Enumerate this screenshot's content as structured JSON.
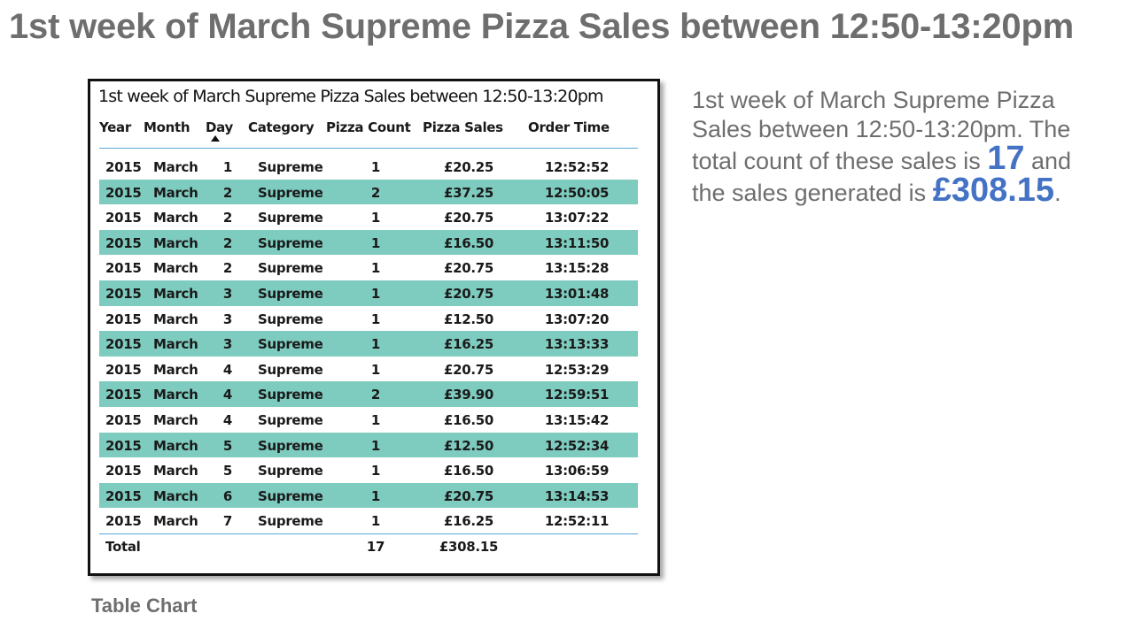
{
  "slide": {
    "title": "1st week of March Supreme Pizza Sales between 12:50-13:20pm",
    "caption": "Table Chart"
  },
  "description": {
    "line1": "1st week of March Supreme Pizza Sales between 12:50-13:20pm. The total count of these sales is ",
    "count": "17",
    "line2": " and the sales generated is ",
    "sales": "£308.15",
    "end": "."
  },
  "chart_data": {
    "type": "table",
    "title": "1st week of March Supreme Pizza Sales between 12:50-13:20pm",
    "columns": [
      "Year",
      "Month",
      "Day",
      "Category",
      "Pizza Count",
      "Pizza Sales",
      "Order Time"
    ],
    "sorted_by": "Day",
    "rows": [
      [
        "2015",
        "March",
        "1",
        "Supreme",
        "1",
        "£20.25",
        "12:52:52"
      ],
      [
        "2015",
        "March",
        "2",
        "Supreme",
        "2",
        "£37.25",
        "12:50:05"
      ],
      [
        "2015",
        "March",
        "2",
        "Supreme",
        "1",
        "£20.75",
        "13:07:22"
      ],
      [
        "2015",
        "March",
        "2",
        "Supreme",
        "1",
        "£16.50",
        "13:11:50"
      ],
      [
        "2015",
        "March",
        "2",
        "Supreme",
        "1",
        "£20.75",
        "13:15:28"
      ],
      [
        "2015",
        "March",
        "3",
        "Supreme",
        "1",
        "£20.75",
        "13:01:48"
      ],
      [
        "2015",
        "March",
        "3",
        "Supreme",
        "1",
        "£12.50",
        "13:07:20"
      ],
      [
        "2015",
        "March",
        "3",
        "Supreme",
        "1",
        "£16.25",
        "13:13:33"
      ],
      [
        "2015",
        "March",
        "4",
        "Supreme",
        "1",
        "£20.75",
        "12:53:29"
      ],
      [
        "2015",
        "March",
        "4",
        "Supreme",
        "2",
        "£39.90",
        "12:59:51"
      ],
      [
        "2015",
        "March",
        "4",
        "Supreme",
        "1",
        "£16.50",
        "13:15:42"
      ],
      [
        "2015",
        "March",
        "5",
        "Supreme",
        "1",
        "£12.50",
        "12:52:34"
      ],
      [
        "2015",
        "March",
        "5",
        "Supreme",
        "1",
        "£16.50",
        "13:06:59"
      ],
      [
        "2015",
        "March",
        "6",
        "Supreme",
        "1",
        "£20.75",
        "13:14:53"
      ],
      [
        "2015",
        "March",
        "7",
        "Supreme",
        "1",
        "£16.25",
        "12:52:11"
      ]
    ],
    "total": {
      "label": "Total",
      "pizza_count": "17",
      "pizza_sales": "£308.15"
    },
    "colors": {
      "band": "#7ecbbf",
      "rule": "#5aa7d8",
      "highlight": "#4472c4"
    }
  }
}
